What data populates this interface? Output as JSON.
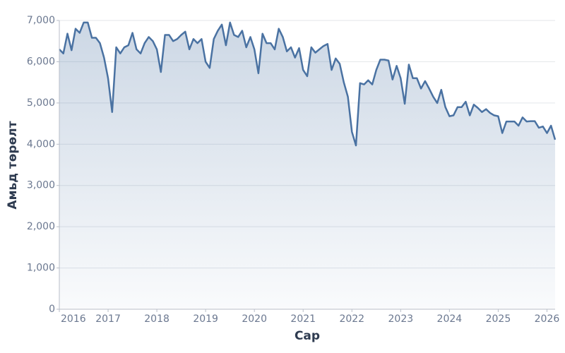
{
  "chart_data": {
    "type": "area",
    "x_label": "Сар",
    "y_label": "Амьд төрөлт",
    "color": "#4a72a2",
    "grid": true,
    "xlim": [
      2016,
      2026.167
    ],
    "xticks": [
      2016,
      2017,
      2018,
      2019,
      2020,
      2021,
      2022,
      2023,
      2024,
      2025,
      2026
    ],
    "ylim": [
      0,
      7000
    ],
    "yticks": [
      0,
      {
        "value": 1000,
        "label": "1,000"
      },
      {
        "value": 2000,
        "label": "2,000"
      },
      {
        "value": 3000,
        "label": "3,000"
      },
      {
        "value": 4000,
        "label": "4,000"
      },
      {
        "value": 5000,
        "label": "5,000"
      },
      {
        "value": 6000,
        "label": "6,000"
      },
      {
        "value": 7000,
        "label": "7,000"
      }
    ],
    "x": [
      2016,
      2016.083,
      2016.167,
      2016.25,
      2016.333,
      2016.417,
      2016.5,
      2016.583,
      2016.667,
      2016.75,
      2016.833,
      2016.917,
      2017,
      2017.083,
      2017.167,
      2017.25,
      2017.333,
      2017.417,
      2017.5,
      2017.583,
      2017.667,
      2017.75,
      2017.833,
      2017.917,
      2018,
      2018.083,
      2018.167,
      2018.25,
      2018.333,
      2018.417,
      2018.5,
      2018.583,
      2018.667,
      2018.75,
      2018.833,
      2018.917,
      2019,
      2019.083,
      2019.167,
      2019.25,
      2019.333,
      2019.417,
      2019.5,
      2019.583,
      2019.667,
      2019.75,
      2019.833,
      2019.917,
      2020,
      2020.083,
      2020.167,
      2020.25,
      2020.333,
      2020.417,
      2020.5,
      2020.583,
      2020.667,
      2020.75,
      2020.833,
      2020.917,
      2021,
      2021.083,
      2021.167,
      2021.25,
      2021.333,
      2021.417,
      2021.5,
      2021.583,
      2021.667,
      2021.75,
      2021.833,
      2021.917,
      2022,
      2022.083,
      2022.167,
      2022.25,
      2022.333,
      2022.417,
      2022.5,
      2022.583,
      2022.667,
      2022.75,
      2022.833,
      2022.917,
      2023,
      2023.083,
      2023.167,
      2023.25,
      2023.333,
      2023.417,
      2023.5,
      2023.583,
      2023.667,
      2023.75,
      2023.833,
      2023.917,
      2024,
      2024.083,
      2024.167,
      2024.25,
      2024.333,
      2024.417,
      2024.5,
      2024.583,
      2024.667,
      2024.75,
      2024.833,
      2024.917,
      2025,
      2025.083,
      2025.167,
      2025.25,
      2025.333,
      2025.417,
      2025.5,
      2025.583,
      2025.667,
      2025.75,
      2025.833,
      2025.917,
      2026,
      2026.083,
      2026.167
    ],
    "values": [
      6300,
      6200,
      6680,
      6280,
      6800,
      6700,
      6950,
      6950,
      6580,
      6580,
      6450,
      6100,
      5600,
      4780,
      6350,
      6200,
      6350,
      6400,
      6700,
      6300,
      6200,
      6450,
      6600,
      6500,
      6300,
      5750,
      6650,
      6650,
      6500,
      6550,
      6650,
      6730,
      6300,
      6550,
      6450,
      6550,
      6000,
      5850,
      6550,
      6750,
      6900,
      6400,
      6950,
      6650,
      6600,
      6750,
      6350,
      6600,
      6300,
      5720,
      6680,
      6450,
      6450,
      6300,
      6800,
      6600,
      6250,
      6350,
      6100,
      6330,
      5800,
      5650,
      6350,
      6220,
      6300,
      6380,
      6430,
      5800,
      6080,
      5950,
      5500,
      5150,
      4300,
      3970,
      5480,
      5450,
      5550,
      5450,
      5800,
      6050,
      6050,
      6030,
      5570,
      5900,
      5600,
      4980,
      5930,
      5600,
      5600,
      5350,
      5530,
      5350,
      5150,
      5000,
      5320,
      4900,
      4680,
      4700,
      4900,
      4900,
      5030,
      4700,
      4960,
      4880,
      4780,
      4850,
      4760,
      4700,
      4680,
      4270,
      4550,
      4550,
      4550,
      4450,
      4650,
      4550,
      4560,
      4560,
      4400,
      4430,
      4270,
      4450,
      4110
    ]
  }
}
